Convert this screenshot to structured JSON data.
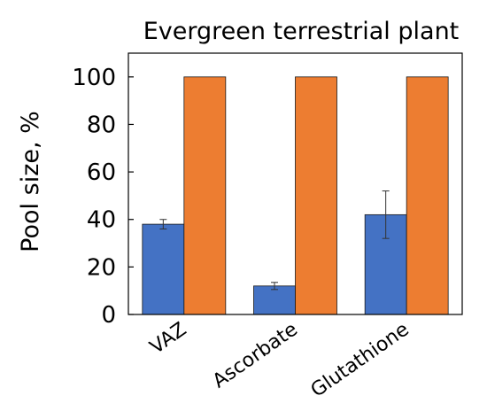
{
  "chart_data": {
    "type": "bar",
    "title": "Evergreen terrestrial plant",
    "xlabel": "",
    "ylabel": "Pool size, %",
    "ylim": [
      0,
      110
    ],
    "yticks": [
      0,
      20,
      40,
      60,
      80,
      100
    ],
    "grid": false,
    "categories": [
      "VAZ",
      "Ascorbate",
      "Glutathione"
    ],
    "series": [
      {
        "color": "#4472c4",
        "values": [
          38,
          12,
          42
        ],
        "errors": [
          2,
          1.5,
          10
        ]
      },
      {
        "color": "#ed7d31",
        "values": [
          100,
          100,
          100
        ],
        "errors": [
          0,
          0,
          0
        ]
      }
    ]
  }
}
